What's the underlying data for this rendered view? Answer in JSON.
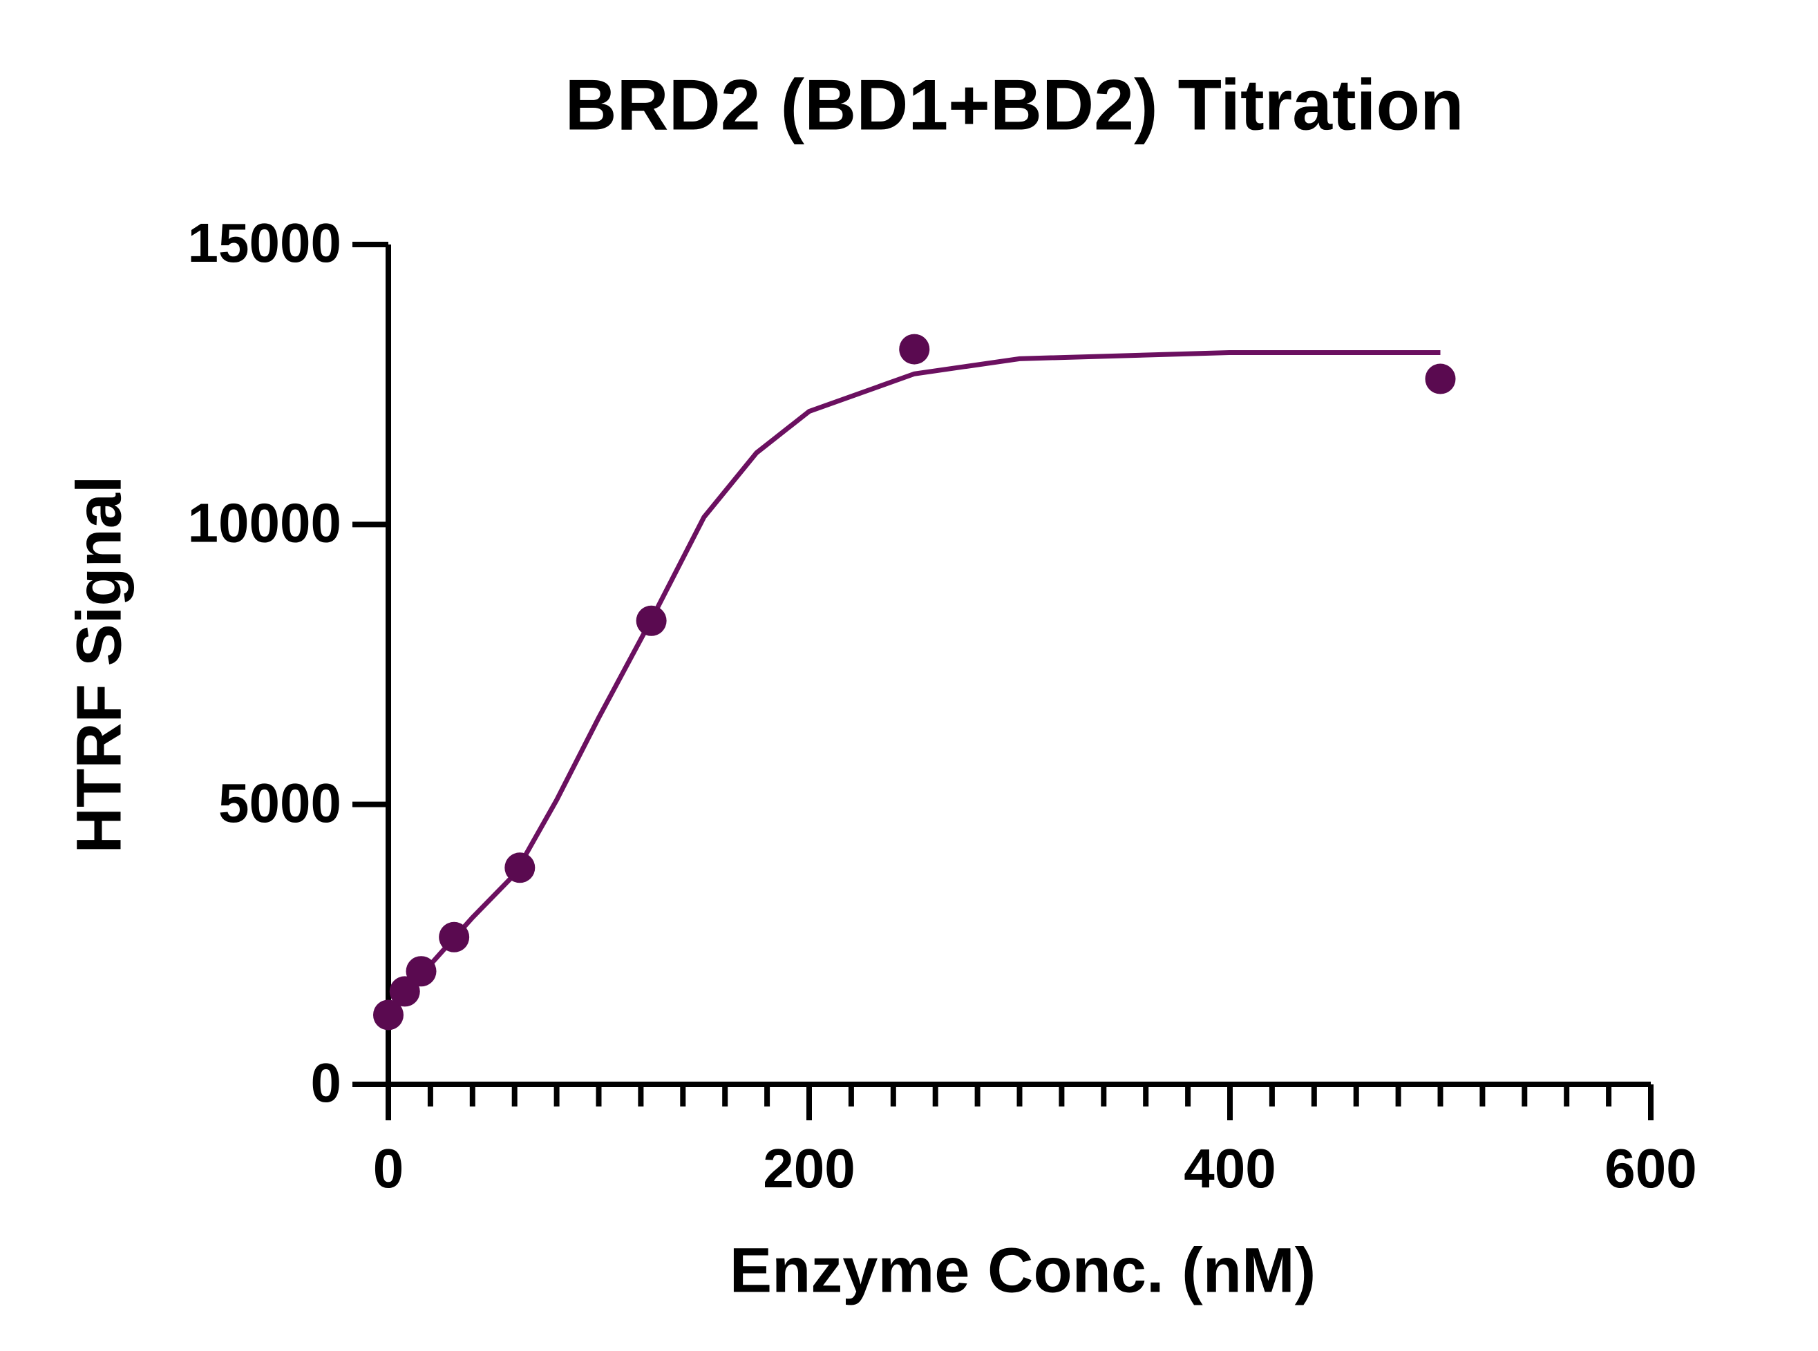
{
  "chart_data": {
    "type": "scatter",
    "title": "BRD2 (BD1+BD2) Titration",
    "x_label": "Enzyme Conc. (nM)",
    "y_label": "HTRF Signal",
    "series": [
      {
        "color": "#5a0a50",
        "mode": "markers",
        "x": [
          0,
          7.8,
          15.6,
          31.25,
          62.5,
          125,
          250,
          500
        ],
        "values": [
          1240,
          1660,
          2020,
          2630,
          3870,
          8280,
          13130,
          12600
        ]
      },
      {
        "color": "#6b1060",
        "mode": "line",
        "x": [
          0,
          10,
          20,
          40,
          60,
          80,
          100,
          125,
          150,
          175,
          200,
          250,
          300,
          400,
          500
        ],
        "values": [
          1200,
          1700,
          2140,
          2980,
          3750,
          5080,
          6550,
          8300,
          10130,
          11280,
          12020,
          12690,
          12960,
          13070,
          13070
        ]
      }
    ],
    "xlim": [
      0,
      600
    ],
    "xticks": [
      0,
      200,
      400,
      600
    ],
    "xminorticks": [
      20,
      40,
      60,
      80,
      100,
      120,
      140,
      160,
      180,
      220,
      240,
      260,
      280,
      300,
      320,
      340,
      360,
      380,
      420,
      440,
      460,
      480,
      500,
      520,
      540,
      560,
      580
    ],
    "ylim": [
      0,
      15000
    ],
    "yticks": [
      0,
      5000,
      10000,
      15000
    ]
  }
}
